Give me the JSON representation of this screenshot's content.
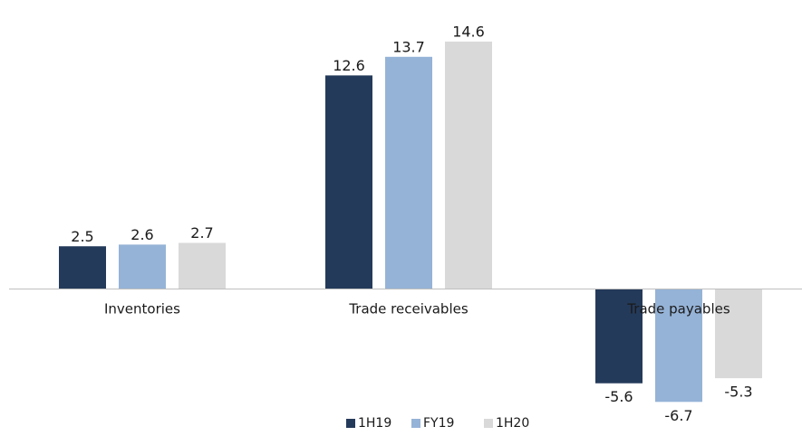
{
  "chart_data": {
    "type": "bar",
    "title": "",
    "xlabel": "",
    "ylabel": "",
    "categories": [
      "Inventories",
      "Trade receivables",
      "Trade payables"
    ],
    "series": [
      {
        "name": "1H19",
        "color": "#243a5a",
        "values": [
          2.5,
          12.6,
          -5.6
        ],
        "labels": [
          "2.5",
          "12.6",
          "-5.6"
        ]
      },
      {
        "name": "FY19",
        "color": "#95b3d7",
        "values": [
          2.6,
          13.7,
          -6.7
        ],
        "labels": [
          "2.6",
          "13.7",
          "-6.7"
        ]
      },
      {
        "name": "1H20",
        "color": "#d9d9d9",
        "values": [
          2.7,
          14.6,
          -5.3
        ],
        "labels": [
          "2.7",
          "14.6",
          "-5.3"
        ]
      }
    ],
    "ylim": [
      -7,
      15.5
    ],
    "grid": false,
    "legend": "bottom-center",
    "zero_line_color": "#bfbfbf"
  }
}
